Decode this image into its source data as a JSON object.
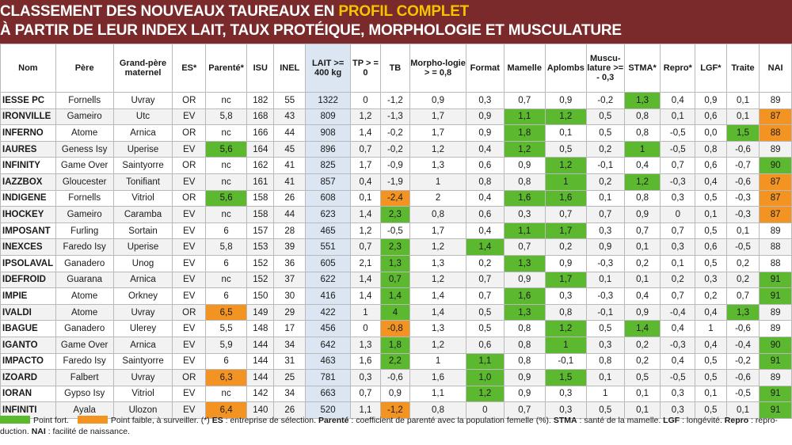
{
  "banner": {
    "line1_prefix": "CLASSEMENT DES NOUVEAUX TAUREAUX EN ",
    "line1_highlight": "PROFIL COMPLET",
    "line2": "À PARTIR DE LEUR INDEX LAIT, TAUX PROTÉIQUE, MORPHOLOGIE ET MUSCULATURE"
  },
  "colors": {
    "banner": "#7a2a2a",
    "highlight": "#f5c400",
    "green": "#5cb82e",
    "orange": "#f39422",
    "lait_col": "#dbe6f2"
  },
  "headers": [
    "Nom",
    "Père",
    "Grand-père maternel",
    "ES*",
    "Parenté*",
    "ISU",
    "INEL",
    "LAIT >= 400 kg",
    "TP > = 0",
    "TB",
    "Morpho-logie > = 0,8",
    "Format",
    "Mamelle",
    "Aplombs",
    "Muscu-lature >= - 0,3",
    "STMA*",
    "Repro*",
    "LGF*",
    "Traite",
    "NAI"
  ],
  "rows": [
    {
      "c": [
        "IESSE PC",
        "Fornells",
        "Uvray",
        "OR",
        "nc",
        "182",
        "55",
        "1322",
        "0",
        "-1,2",
        "0,9",
        "0,3",
        "0,7",
        "0,9",
        "-0,2",
        "1,3",
        "0,4",
        "0,9",
        "0,1",
        "89"
      ],
      "g": [
        15
      ],
      "o": []
    },
    {
      "c": [
        "IRONVILLE",
        "Gameiro",
        "Utc",
        "EV",
        "5,8",
        "168",
        "43",
        "809",
        "1,2",
        "-1,3",
        "1,7",
        "0,9",
        "1,1",
        "1,2",
        "0,5",
        "0,8",
        "0,1",
        "0,6",
        "0,1",
        "87"
      ],
      "g": [
        12,
        13
      ],
      "o": [
        19
      ]
    },
    {
      "c": [
        "INFERNO",
        "Atome",
        "Arnica",
        "OR",
        "nc",
        "166",
        "44",
        "908",
        "1,4",
        "-0,2",
        "1,7",
        "0,9",
        "1,8",
        "0,1",
        "0,5",
        "0,8",
        "-0,5",
        "0,0",
        "1,5",
        "88"
      ],
      "g": [
        12,
        18
      ],
      "o": [
        19
      ]
    },
    {
      "c": [
        "IAURES",
        "Geness Isy",
        "Uperise",
        "EV",
        "5,6",
        "164",
        "45",
        "896",
        "0,7",
        "-0,2",
        "1,2",
        "0,4",
        "1,2",
        "0,5",
        "0,2",
        "1",
        "-0,5",
        "0,8",
        "-0,6",
        "89"
      ],
      "g": [
        4,
        12,
        15
      ],
      "o": []
    },
    {
      "c": [
        "INFINITY",
        "Game Over",
        "Saintyorre",
        "OR",
        "nc",
        "162",
        "41",
        "825",
        "1,7",
        "-0,9",
        "1,3",
        "0,6",
        "0,9",
        "1,2",
        "-0,1",
        "0,4",
        "0,7",
        "0,6",
        "-0,7",
        "90"
      ],
      "g": [
        13,
        19
      ],
      "o": []
    },
    {
      "c": [
        "IAZZBOX",
        "Gloucester",
        "Tonifiant",
        "EV",
        "nc",
        "161",
        "41",
        "857",
        "0,4",
        "-1,9",
        "1",
        "0,8",
        "0,8",
        "1",
        "0,2",
        "1,2",
        "-0,3",
        "0,4",
        "-0,6",
        "87"
      ],
      "g": [
        13,
        15
      ],
      "o": [
        19
      ]
    },
    {
      "c": [
        "INDIGENE",
        "Fornells",
        "Vitriol",
        "OR",
        "5,6",
        "158",
        "26",
        "608",
        "0,1",
        "-2,4",
        "2",
        "0,4",
        "1,6",
        "1,6",
        "0,1",
        "0,8",
        "0,3",
        "0,5",
        "-0,3",
        "87"
      ],
      "g": [
        4,
        12,
        13
      ],
      "o": [
        9,
        19
      ]
    },
    {
      "c": [
        "IHOCKEY",
        "Gameiro",
        "Caramba",
        "EV",
        "nc",
        "158",
        "44",
        "623",
        "1,4",
        "2,3",
        "0,8",
        "0,6",
        "0,3",
        "0,7",
        "0,7",
        "0,9",
        "0",
        "0,1",
        "-0,3",
        "87"
      ],
      "g": [
        9
      ],
      "o": [
        19
      ]
    },
    {
      "c": [
        "IMPOSANT",
        "Furling",
        "Sortain",
        "EV",
        "6",
        "157",
        "28",
        "465",
        "1,2",
        "-0,5",
        "1,7",
        "0,4",
        "1,1",
        "1,7",
        "0,3",
        "0,7",
        "0,7",
        "0,5",
        "0,1",
        "89"
      ],
      "g": [
        12,
        13
      ],
      "o": []
    },
    {
      "c": [
        "INEXCES",
        "Faredo Isy",
        "Uperise",
        "EV",
        "5,8",
        "153",
        "39",
        "551",
        "0,7",
        "2,3",
        "1,2",
        "1,4",
        "0,7",
        "0,2",
        "0,9",
        "0,1",
        "0,3",
        "0,6",
        "-0,5",
        "88"
      ],
      "g": [
        9,
        11
      ],
      "o": []
    },
    {
      "c": [
        "IPSOLAVAL",
        "Ganadero",
        "Unog",
        "EV",
        "6",
        "152",
        "36",
        "605",
        "2,1",
        "1,3",
        "1,3",
        "0,2",
        "1,3",
        "0,9",
        "-0,3",
        "0,2",
        "0,1",
        "0,5",
        "0,2",
        "88"
      ],
      "g": [
        9,
        12
      ],
      "o": []
    },
    {
      "c": [
        "IDEFROID",
        "Guarana",
        "Arnica",
        "EV",
        "nc",
        "152",
        "37",
        "622",
        "1,4",
        "0,7",
        "1,2",
        "0,7",
        "0,9",
        "1,7",
        "0,1",
        "0,1",
        "0,2",
        "0,3",
        "0,2",
        "91"
      ],
      "g": [
        9,
        13,
        19
      ],
      "o": []
    },
    {
      "c": [
        "IMPIE",
        "Atome",
        "Orkney",
        "EV",
        "6",
        "150",
        "30",
        "416",
        "1,4",
        "1,4",
        "1,4",
        "0,7",
        "1,6",
        "0,3",
        "-0,3",
        "0,4",
        "0,7",
        "0,2",
        "0,7",
        "91"
      ],
      "g": [
        9,
        12,
        19
      ],
      "o": []
    },
    {
      "c": [
        "IVALDI",
        "Atome",
        "Uvray",
        "OR",
        "6,5",
        "149",
        "29",
        "422",
        "1",
        "4",
        "1,4",
        "0,5",
        "1,3",
        "0,8",
        "-0,1",
        "0,9",
        "-0,4",
        "0,4",
        "1,3",
        "89"
      ],
      "g": [
        9,
        12,
        18
      ],
      "o": [
        4
      ]
    },
    {
      "c": [
        "IBAGUE",
        "Ganadero",
        "Ulerey",
        "EV",
        "5,5",
        "148",
        "17",
        "456",
        "0",
        "-0,8",
        "1,3",
        "0,5",
        "0,8",
        "1,2",
        "0,5",
        "1,4",
        "0,4",
        "1",
        "-0,6",
        "89"
      ],
      "g": [
        13,
        15
      ],
      "o": [
        9
      ]
    },
    {
      "c": [
        "IGANTO",
        "Game Over",
        "Arnica",
        "EV",
        "5,9",
        "144",
        "34",
        "642",
        "1,3",
        "1,8",
        "1,2",
        "0,6",
        "0,8",
        "1",
        "0,3",
        "0,2",
        "-0,3",
        "0,4",
        "-0,4",
        "90"
      ],
      "g": [
        9,
        13,
        19
      ],
      "o": []
    },
    {
      "c": [
        "IMPACTO",
        "Faredo Isy",
        "Saintyorre",
        "EV",
        "6",
        "144",
        "31",
        "463",
        "1,6",
        "2,2",
        "1",
        "1,1",
        "0,8",
        "-0,1",
        "0,8",
        "0,2",
        "0,4",
        "0,5",
        "-0,2",
        "91"
      ],
      "g": [
        9,
        11,
        19
      ],
      "o": []
    },
    {
      "c": [
        "IZOARD",
        "Falbert",
        "Uvray",
        "OR",
        "6,3",
        "144",
        "25",
        "781",
        "0,3",
        "-0,6",
        "1,6",
        "1,0",
        "0,9",
        "1,5",
        "0,1",
        "0,5",
        "-0,5",
        "0,5",
        "-0,6",
        "89"
      ],
      "g": [
        11,
        13
      ],
      "o": [
        4
      ]
    },
    {
      "c": [
        "IORAN",
        "Gypso Isy",
        "Vitriol",
        "EV",
        "nc",
        "142",
        "34",
        "663",
        "0,7",
        "0,9",
        "1,1",
        "1,2",
        "0,9",
        "0,3",
        "1",
        "0,1",
        "0,3",
        "0,1",
        "-0,5",
        "91"
      ],
      "g": [
        11,
        19
      ],
      "o": []
    },
    {
      "c": [
        "INFINITI",
        "Ayala",
        "Ulozon",
        "EV",
        "6,4",
        "140",
        "26",
        "520",
        "1,1",
        "-1,2",
        "0,8",
        "0",
        "0,7",
        "0,3",
        "0,5",
        "0,1",
        "0,3",
        "0,5",
        "0,1",
        "91"
      ],
      "g": [
        19
      ],
      "o": [
        4,
        9
      ]
    }
  ],
  "legend": {
    "green_label": "Point fort.",
    "orange_label": "Point faible, à surveiller.",
    "row1_rest_a": " (*) ",
    "es_key": "ES",
    "row1_rest_b": " : entreprise de sélection. ",
    "parente_key": "Parenté",
    "row1_rest_c": " : coefficient de parenté avec la population femelle (%). ",
    "stma_key": "STMA",
    "row1_rest_d": " : santé de la mamelle. ",
    "lgf_key": "LGF",
    "row1_rest_e": " : longévité. ",
    "repro_key": "Repro",
    "row1_rest_f": " : repro-",
    "row2_a": "duction. ",
    "nai_key": "NAI",
    "row2_b": " : facilité de naissance."
  }
}
